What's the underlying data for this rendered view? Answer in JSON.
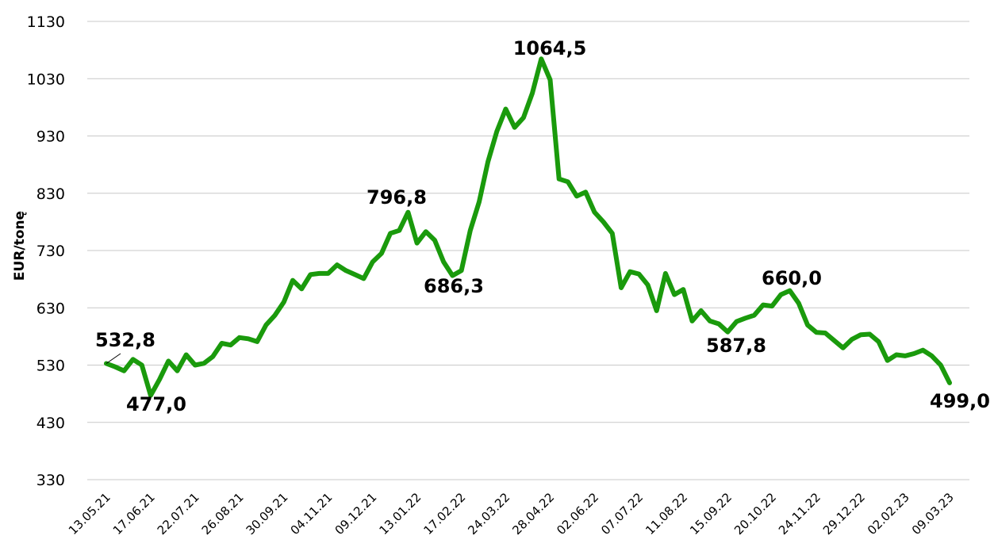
{
  "chart_data": {
    "type": "line",
    "y_label": "EUR/tonę",
    "categories": [
      "13.05.21",
      null,
      null,
      null,
      null,
      "17.06.21",
      null,
      null,
      null,
      null,
      "22.07.21",
      null,
      null,
      null,
      null,
      "26.08.21",
      null,
      null,
      null,
      null,
      "30.09.21",
      null,
      null,
      null,
      null,
      "04.11.21",
      null,
      null,
      null,
      null,
      "09.12.21",
      null,
      null,
      null,
      null,
      "13.01.22",
      null,
      null,
      null,
      null,
      "17.02.22",
      null,
      null,
      null,
      null,
      "24.03.22",
      null,
      null,
      null,
      null,
      "28.04.22",
      null,
      null,
      null,
      null,
      "02.06.22",
      null,
      null,
      null,
      null,
      "07.07.22",
      null,
      null,
      null,
      null,
      "11.08.22",
      null,
      null,
      null,
      null,
      "15.09.22",
      null,
      null,
      null,
      null,
      "20.10.22",
      null,
      null,
      null,
      null,
      "24.11.22",
      null,
      null,
      null,
      null,
      "29.12.22",
      null,
      null,
      null,
      null,
      "02.02.23",
      null,
      null,
      null,
      null,
      "09.03.23"
    ],
    "series": [
      {
        "name": "EUR/tonę",
        "color": "#1a9a0c",
        "values": [
          532.8,
          527,
          520,
          540,
          530,
          477.0,
          505,
          537,
          520,
          548,
          530,
          533,
          545,
          568,
          565,
          578,
          576,
          571,
          600,
          617,
          640,
          678,
          663,
          688,
          690,
          690,
          705,
          695,
          688,
          681,
          710,
          725,
          760,
          765,
          796.8,
          743,
          763,
          748,
          710,
          686.3,
          695,
          765,
          815,
          885,
          938,
          977,
          945,
          962,
          1005,
          1064.5,
          1028,
          855,
          850,
          825,
          832,
          797,
          780,
          760,
          665,
          693,
          689,
          670,
          625,
          690,
          653,
          662,
          607,
          625,
          607,
          602,
          587.8,
          606,
          612,
          617,
          635,
          633,
          653,
          660.0,
          638,
          600,
          587,
          586,
          573,
          560,
          575,
          583,
          584,
          571,
          538,
          548,
          546,
          550,
          556,
          546,
          530,
          499.0
        ],
        "value_labels": [
          "532,8",
          null,
          null,
          null,
          null,
          "477,0",
          null,
          null,
          null,
          null,
          null,
          null,
          null,
          null,
          null,
          null,
          null,
          null,
          null,
          null,
          null,
          null,
          null,
          null,
          null,
          null,
          null,
          null,
          null,
          null,
          null,
          null,
          null,
          null,
          "796,8",
          null,
          null,
          null,
          null,
          "686,3",
          null,
          null,
          null,
          null,
          null,
          null,
          null,
          null,
          null,
          "1064,5",
          null,
          null,
          null,
          null,
          null,
          null,
          null,
          null,
          null,
          null,
          null,
          null,
          null,
          null,
          null,
          null,
          null,
          null,
          null,
          null,
          "587,8",
          null,
          null,
          null,
          null,
          null,
          null,
          "660,0",
          null,
          null,
          null,
          null,
          null,
          null,
          null,
          null,
          null,
          null,
          null,
          null,
          null,
          null,
          null,
          null,
          null,
          "499,0"
        ]
      }
    ],
    "ylim": [
      330,
      1130
    ],
    "yticks": [
      330,
      430,
      530,
      630,
      730,
      830,
      930,
      1030,
      1130
    ],
    "grid": true
  }
}
